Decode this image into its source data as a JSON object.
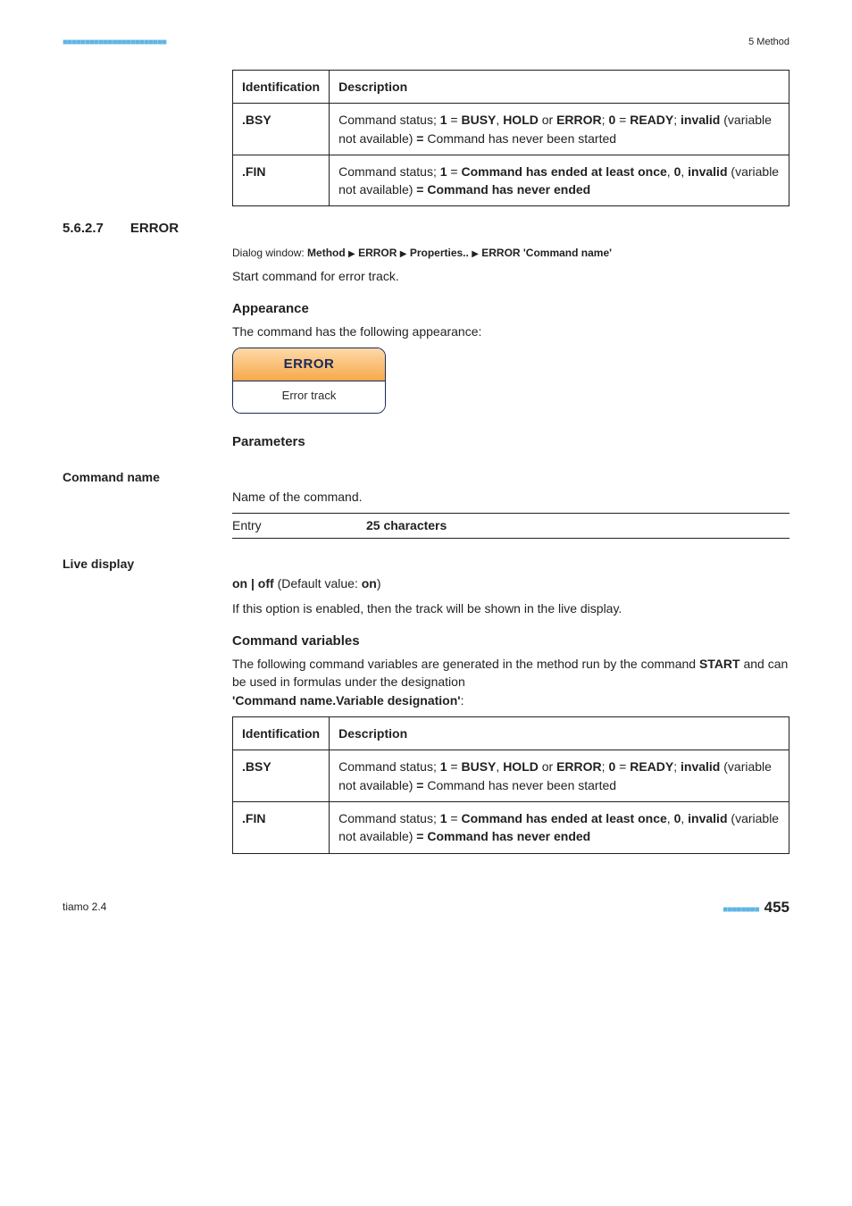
{
  "top": {
    "dots": "■■■■■■■■■■■■■■■■■■■■■■■",
    "chapter": "5 Method"
  },
  "table1": {
    "h1": "Identification",
    "h2": "Description",
    "r1": {
      "ident": ".BSY",
      "plain1": "Command status; ",
      "b1": "1",
      "p2": " = ",
      "b2": "BUSY",
      "p3": ", ",
      "b3": "HOLD",
      "p4": " or ",
      "b4": "ERROR",
      "p5": "; ",
      "b5": "0",
      "p6": " = ",
      "b6": "READY",
      "p7": "; ",
      "b7": "invalid",
      "p8": " (variable not available) ",
      "b8": "=",
      "p9": " Command has never been started"
    },
    "r2": {
      "ident": ".FIN",
      "plain1": "Command status; ",
      "b1": "1",
      "p2": " = ",
      "b2": "Command has ended at least once",
      "p3": ", ",
      "b3": "0",
      "p4": ", ",
      "b4": "invalid",
      "p5": " (variable not available) ",
      "b5": "=",
      "p6": " ",
      "b6": "Command has never ended"
    }
  },
  "section": {
    "num": "5.6.2.7",
    "title": "ERROR",
    "dlg_prefix": "Dialog window: ",
    "dlg_path_1": "Method",
    "dlg_path_2": "ERROR",
    "dlg_path_3": "Properties..",
    "dlg_path_4": "ERROR 'Command name'",
    "intro": "Start command for error track."
  },
  "appearance": {
    "heading": "Appearance",
    "text": "The command has the following appearance:",
    "btn_top": "ERROR",
    "btn_bot": "Error track"
  },
  "parameters_heading": "Parameters",
  "cmd_name": {
    "label": "Command name",
    "text": "Name of the command.",
    "entry_lbl": "Entry",
    "entry_val": "25 characters"
  },
  "live": {
    "label": "Live display",
    "opt1": "on | off",
    "def_prefix": " (Default value: ",
    "def_val": "on",
    "def_suffix": ")",
    "text": "If this option is enabled, then the track will be shown in the live display."
  },
  "cmdvars": {
    "heading": "Command variables",
    "p1a": "The following command variables are generated in the method run by the command ",
    "p1b": "START",
    "p1c": " and can be used in formulas under the designation ",
    "p2": "'Command name.Variable designation'",
    "p2suf": ":"
  },
  "table2": {
    "h1": "Identification",
    "h2": "Description",
    "r1": {
      "ident": ".BSY",
      "plain1": "Command status; ",
      "b1": "1",
      "p2": " = ",
      "b2": "BUSY",
      "p3": ", ",
      "b3": "HOLD",
      "p4": " or ",
      "b4": "ERROR",
      "p5": "; ",
      "b5": "0",
      "p6": " = ",
      "b6": "READY",
      "p7": "; ",
      "b7": "invalid",
      "p8": " (variable not available) ",
      "b8": "=",
      "p9": " Command has never been started"
    },
    "r2": {
      "ident": ".FIN",
      "plain1": "Command status; ",
      "b1": "1",
      "p2": " = ",
      "b2": "Command has ended at least once",
      "p3": ", ",
      "b3": "0",
      "p4": ", ",
      "b4": "invalid",
      "p5": " (variable not available) ",
      "b5": "=",
      "p6": " ",
      "b6": "Command has never ended"
    }
  },
  "footer": {
    "left": "tiamo 2.4",
    "dots": "■■■■■■■■",
    "page": "455"
  }
}
